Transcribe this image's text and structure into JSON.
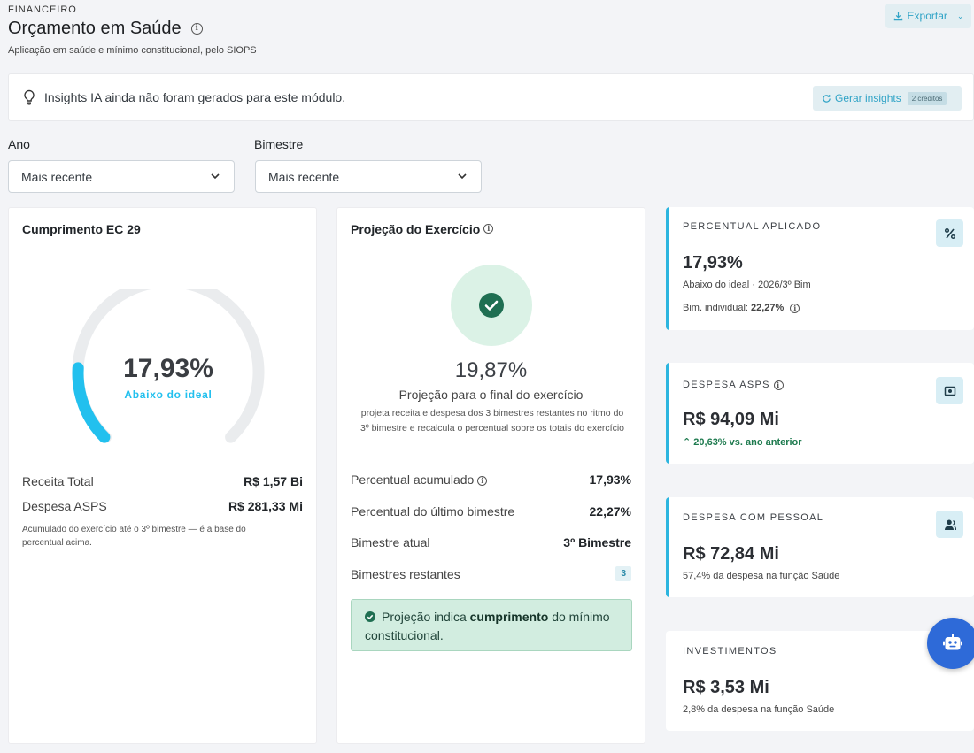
{
  "header": {
    "overline": "FINANCEIRO",
    "title": "Orçamento em Saúde",
    "subtitle": "Aplicação em saúde e mínimo constitucional, pelo SIOPS",
    "export_label": "Exportar"
  },
  "insights": {
    "text": "Insights IA ainda não foram gerados para este módulo.",
    "button_label": "Gerar insights",
    "credits": "2 créditos"
  },
  "filters": {
    "ano_label": "Ano",
    "ano_value": "Mais recente",
    "bimestre_label": "Bimestre",
    "bimestre_value": "Mais recente"
  },
  "cumprimento": {
    "title": "Cumprimento EC 29",
    "gauge_value": "17,93%",
    "gauge_fraction": 0.1793,
    "gauge_status": "Abaixo do ideal",
    "rows": [
      {
        "label": "Receita Total",
        "value": "R$ 1,57 Bi"
      },
      {
        "label": "Despesa ASPS",
        "value": "R$ 281,33 Mi"
      }
    ],
    "note": "Acumulado do exercício até o 3º bimestre — é a base do percentual acima."
  },
  "projecao": {
    "title": "Projeção do Exercício",
    "value": "19,87%",
    "subtitle": "Projeção para o final do exercício",
    "description": "projeta receita e despesa dos 3 bimestres restantes no ritmo do 3º bimestre e recalcula o percentual sobre os totais do exercício",
    "rows": [
      {
        "label": "Percentual acumulado",
        "value": "17,93%"
      },
      {
        "label": "Percentual do último bimestre",
        "value": "22,27%"
      },
      {
        "label": "Bimestre atual",
        "value": "3º Bimestre"
      },
      {
        "label": "Bimestres restantes",
        "value": "3"
      }
    ],
    "alert_before": "Projeção indica",
    "alert_bold": "cumprimento",
    "alert_after": "do mínimo constitucional."
  },
  "kpis": {
    "percentual": {
      "title": "PERCENTUAL APLICADO",
      "value": "17,93%",
      "sub": "Abaixo do ideal · 2026/3º Bim",
      "sub2_label": "Bim. individual:",
      "sub2_value": "22,27%",
      "icon": "percent-icon"
    },
    "despesa_asps": {
      "title": "DESPESA ASPS",
      "value": "R$ 94,09 Mi",
      "trend": "20,63% vs. ano anterior",
      "icon": "money-icon"
    },
    "pessoal": {
      "title": "DESPESA COM PESSOAL",
      "value": "R$ 72,84 Mi",
      "sub": "57,4% da despesa na função Saúde",
      "icon": "person-icon"
    },
    "investimentos": {
      "title": "INVESTIMENTOS",
      "value": "R$ 3,53 Mi",
      "sub": "2,8% da despesa na função Saúde"
    }
  },
  "colors": {
    "accent": "#2cb5df",
    "gauge_fill": "#22c0ee",
    "success_dark": "#1f6f52",
    "assistant_button": "#2e6ad8"
  }
}
